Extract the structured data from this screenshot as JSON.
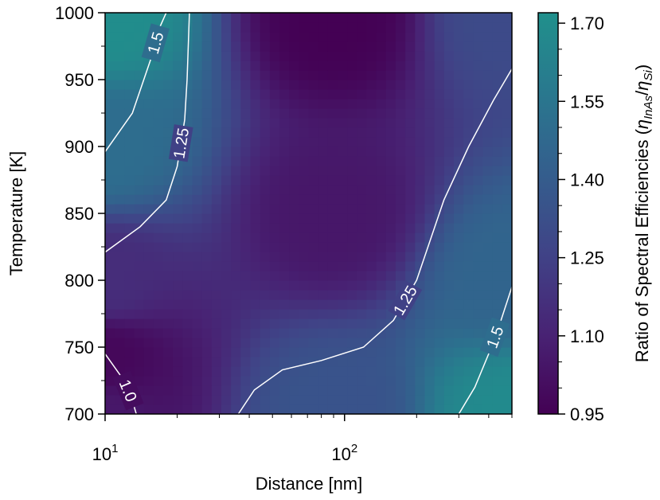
{
  "chart_data": {
    "type": "heatmap",
    "subtype": "filled-contour",
    "xlabel": "Distance [nm]",
    "ylabel": "Temperature [K]",
    "x_scale": "log",
    "xlim": [
      10,
      500
    ],
    "ylim": [
      700,
      1000
    ],
    "x_ticks": [
      {
        "value": 10,
        "base": "10",
        "exp": "1"
      },
      {
        "value": 100,
        "base": "10",
        "exp": "2"
      }
    ],
    "y_ticks": [
      700,
      750,
      800,
      850,
      900,
      950,
      1000
    ],
    "colorbar": {
      "label_prefix": "Ratio of Spectral Efficiencies (",
      "label_sym1": "η",
      "label_sub1": "InAs",
      "label_slash": "/",
      "label_sym2": "η",
      "label_sub2": "Si",
      "label_suffix": ")",
      "colormap": "viridis",
      "range": [
        0.95,
        1.72
      ],
      "ticks": [
        0.95,
        1.1,
        1.25,
        1.4,
        1.55,
        1.7
      ],
      "tick_labels": [
        "0.95",
        "1.10",
        "1.25",
        "1.40",
        "1.55",
        "1.70"
      ]
    },
    "field_samples": [
      {
        "x": 10,
        "y": 1000,
        "value": 1.7
      },
      {
        "x": 10,
        "y": 900,
        "value": 1.5
      },
      {
        "x": 10,
        "y": 800,
        "value": 1.15
      },
      {
        "x": 10,
        "y": 740,
        "value": 0.98
      },
      {
        "x": 10,
        "y": 700,
        "value": 1.05
      },
      {
        "x": 90,
        "y": 1000,
        "value": 0.95
      },
      {
        "x": 90,
        "y": 850,
        "value": 1.05
      },
      {
        "x": 90,
        "y": 700,
        "value": 1.35
      },
      {
        "x": 500,
        "y": 1000,
        "value": 1.3
      },
      {
        "x": 500,
        "y": 800,
        "value": 1.45
      },
      {
        "x": 500,
        "y": 700,
        "value": 1.68
      }
    ],
    "contours": [
      {
        "level": 1.5,
        "label": "1.5",
        "points": [
          [
            10,
            896
          ],
          [
            13,
            925
          ],
          [
            15.5,
            965
          ],
          [
            17,
            990
          ],
          [
            18,
            1000
          ]
        ]
      },
      {
        "level": 1.25,
        "label": "1.25",
        "points": [
          [
            10,
            821
          ],
          [
            14,
            840
          ],
          [
            18,
            860
          ],
          [
            20,
            885
          ],
          [
            21.5,
            920
          ],
          [
            22,
            950
          ],
          [
            22.3,
            980
          ],
          [
            22.5,
            1000
          ]
        ]
      },
      {
        "level": 1.0,
        "label": "1.0",
        "points": [
          [
            10,
            745
          ],
          [
            12,
            725
          ],
          [
            13,
            710
          ],
          [
            13.5,
            700
          ]
        ]
      },
      {
        "level": 1.25,
        "label": "1.25",
        "points": [
          [
            36,
            700
          ],
          [
            42,
            718
          ],
          [
            55,
            733
          ],
          [
            80,
            740
          ],
          [
            120,
            750
          ],
          [
            160,
            770
          ],
          [
            200,
            800
          ],
          [
            260,
            860
          ],
          [
            330,
            900
          ],
          [
            420,
            935
          ],
          [
            500,
            958
          ]
        ]
      },
      {
        "level": 1.5,
        "label": "1.5",
        "points": [
          [
            300,
            700
          ],
          [
            350,
            720
          ],
          [
            400,
            745
          ],
          [
            450,
            770
          ],
          [
            500,
            795
          ]
        ]
      }
    ]
  }
}
